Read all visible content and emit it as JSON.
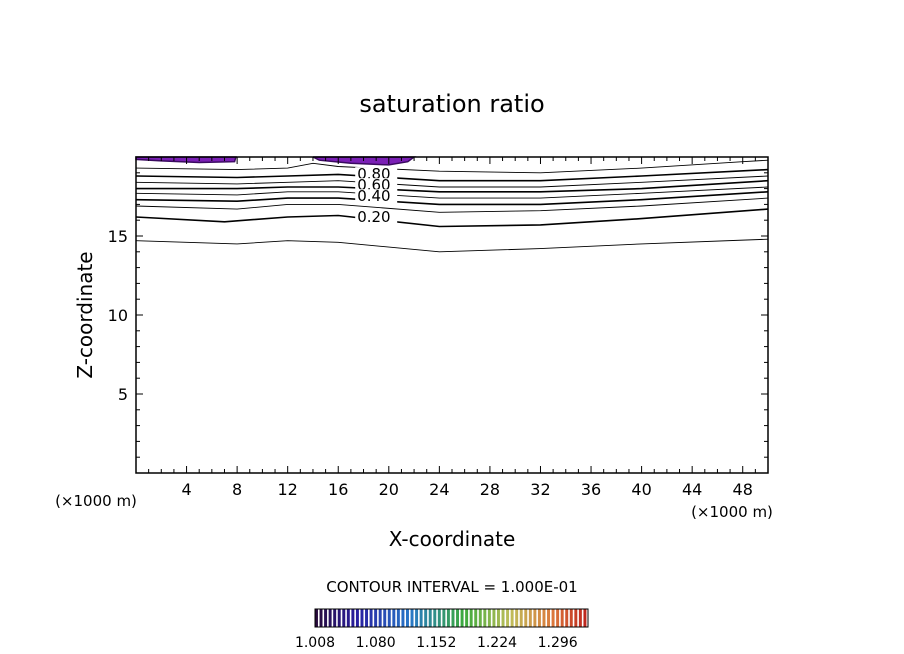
{
  "chart_data": {
    "type": "contour",
    "title": "saturation ratio",
    "xlabel": "X-coordinate",
    "ylabel": "Z-coordinate",
    "xunit_left": "(×1000 m)",
    "xunit_right": "(×1000 m)",
    "xlim": [
      0,
      50
    ],
    "ylim": [
      0,
      20
    ],
    "xticks": [
      4,
      8,
      12,
      16,
      20,
      24,
      28,
      32,
      36,
      40,
      44,
      48
    ],
    "yticks": [
      5,
      10,
      15
    ],
    "contour_interval_text": "CONTOUR INTERVAL = 1.000E-01",
    "contour_labels": [
      {
        "text": "0.80",
        "x": 17.5,
        "z": 18.6
      },
      {
        "text": "0.60",
        "x": 17.5,
        "z": 17.9
      },
      {
        "text": "0.40",
        "x": 17.5,
        "z": 17.2
      },
      {
        "text": "0.20",
        "x": 17.5,
        "z": 15.9
      }
    ],
    "contour_lines": [
      {
        "level": 0.1,
        "points": [
          [
            0,
            14.7
          ],
          [
            8,
            14.5
          ],
          [
            12,
            14.7
          ],
          [
            16,
            14.6
          ],
          [
            24,
            14.0
          ],
          [
            32,
            14.2
          ],
          [
            40,
            14.5
          ],
          [
            50,
            14.8
          ]
        ]
      },
      {
        "level": 0.2,
        "points": [
          [
            0,
            16.2
          ],
          [
            7,
            15.9
          ],
          [
            12,
            16.2
          ],
          [
            16,
            16.3
          ],
          [
            24,
            15.6
          ],
          [
            32,
            15.7
          ],
          [
            40,
            16.1
          ],
          [
            50,
            16.7
          ]
        ]
      },
      {
        "level": 0.3,
        "points": [
          [
            0,
            16.9
          ],
          [
            8,
            16.7
          ],
          [
            12,
            17.0
          ],
          [
            16,
            17.0
          ],
          [
            24,
            16.5
          ],
          [
            32,
            16.6
          ],
          [
            40,
            16.9
          ],
          [
            50,
            17.4
          ]
        ]
      },
      {
        "level": 0.4,
        "points": [
          [
            0,
            17.3
          ],
          [
            8,
            17.2
          ],
          [
            12,
            17.4
          ],
          [
            16,
            17.4
          ],
          [
            24,
            17.0
          ],
          [
            32,
            17.0
          ],
          [
            40,
            17.3
          ],
          [
            50,
            17.8
          ]
        ]
      },
      {
        "level": 0.5,
        "points": [
          [
            0,
            17.7
          ],
          [
            8,
            17.6
          ],
          [
            12,
            17.8
          ],
          [
            16,
            17.8
          ],
          [
            24,
            17.4
          ],
          [
            32,
            17.4
          ],
          [
            40,
            17.7
          ],
          [
            50,
            18.1
          ]
        ]
      },
      {
        "level": 0.6,
        "points": [
          [
            0,
            18.0
          ],
          [
            8,
            18.0
          ],
          [
            12,
            18.1
          ],
          [
            16,
            18.1
          ],
          [
            24,
            17.8
          ],
          [
            32,
            17.8
          ],
          [
            40,
            18.0
          ],
          [
            50,
            18.5
          ]
        ]
      },
      {
        "level": 0.7,
        "points": [
          [
            0,
            18.4
          ],
          [
            8,
            18.3
          ],
          [
            12,
            18.4
          ],
          [
            16,
            18.5
          ],
          [
            24,
            18.1
          ],
          [
            32,
            18.1
          ],
          [
            40,
            18.4
          ],
          [
            50,
            18.8
          ]
        ]
      },
      {
        "level": 0.8,
        "points": [
          [
            0,
            18.8
          ],
          [
            8,
            18.7
          ],
          [
            12,
            18.8
          ],
          [
            16,
            18.9
          ],
          [
            24,
            18.5
          ],
          [
            32,
            18.5
          ],
          [
            40,
            18.8
          ],
          [
            50,
            19.2
          ]
        ]
      },
      {
        "level": 0.9,
        "points": [
          [
            0,
            19.3
          ],
          [
            8,
            19.2
          ],
          [
            12,
            19.3
          ],
          [
            14,
            19.6
          ],
          [
            16,
            19.4
          ],
          [
            24,
            19.1
          ],
          [
            32,
            19.0
          ],
          [
            40,
            19.3
          ],
          [
            48,
            19.7
          ],
          [
            50,
            19.8
          ]
        ]
      }
    ],
    "supersaturated_regions": [
      {
        "points": [
          [
            0,
            20
          ],
          [
            0,
            19.85
          ],
          [
            2,
            19.75
          ],
          [
            5,
            19.65
          ],
          [
            7.8,
            19.7
          ],
          [
            7.9,
            20
          ]
        ]
      },
      {
        "points": [
          [
            14,
            20
          ],
          [
            14.5,
            19.8
          ],
          [
            17,
            19.6
          ],
          [
            20,
            19.5
          ],
          [
            21.5,
            19.7
          ],
          [
            22,
            20
          ]
        ]
      }
    ],
    "colorbar": {
      "min": 1.008,
      "max": 1.332,
      "tick_labels": [
        "1.008",
        "1.080",
        "1.152",
        "1.224",
        "1.296"
      ]
    },
    "colors": {
      "region_fill": "#7a1fb5",
      "region_edge": "#3a0a60"
    }
  }
}
